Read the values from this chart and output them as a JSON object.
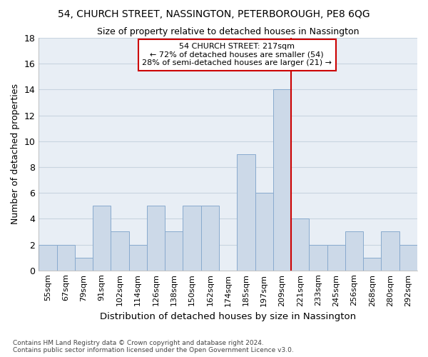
{
  "title_line1": "54, CHURCH STREET, NASSINGTON, PETERBOROUGH, PE8 6QG",
  "title_line2": "Size of property relative to detached houses in Nassington",
  "xlabel": "Distribution of detached houses by size in Nassington",
  "ylabel": "Number of detached properties",
  "categories": [
    "55sqm",
    "67sqm",
    "79sqm",
    "91sqm",
    "102sqm",
    "114sqm",
    "126sqm",
    "138sqm",
    "150sqm",
    "162sqm",
    "174sqm",
    "185sqm",
    "197sqm",
    "209sqm",
    "221sqm",
    "233sqm",
    "245sqm",
    "256sqm",
    "268sqm",
    "280sqm",
    "292sqm"
  ],
  "values": [
    2,
    2,
    1,
    5,
    3,
    2,
    5,
    3,
    5,
    5,
    0,
    9,
    6,
    14,
    4,
    2,
    2,
    3,
    1,
    3,
    2
  ],
  "bar_color": "#ccd9e8",
  "bar_edge_color": "#88aace",
  "grid_color": "#c8d4e0",
  "vline_color": "#cc0000",
  "annotation_text": "54 CHURCH STREET: 217sqm\n← 72% of detached houses are smaller (54)\n28% of semi-detached houses are larger (21) →",
  "annotation_box_color": "#cc0000",
  "ylim": [
    0,
    18
  ],
  "yticks": [
    0,
    2,
    4,
    6,
    8,
    10,
    12,
    14,
    16,
    18
  ],
  "footnote": "Contains HM Land Registry data © Crown copyright and database right 2024.\nContains public sector information licensed under the Open Government Licence v3.0.",
  "bg_color": "#e8eef5"
}
